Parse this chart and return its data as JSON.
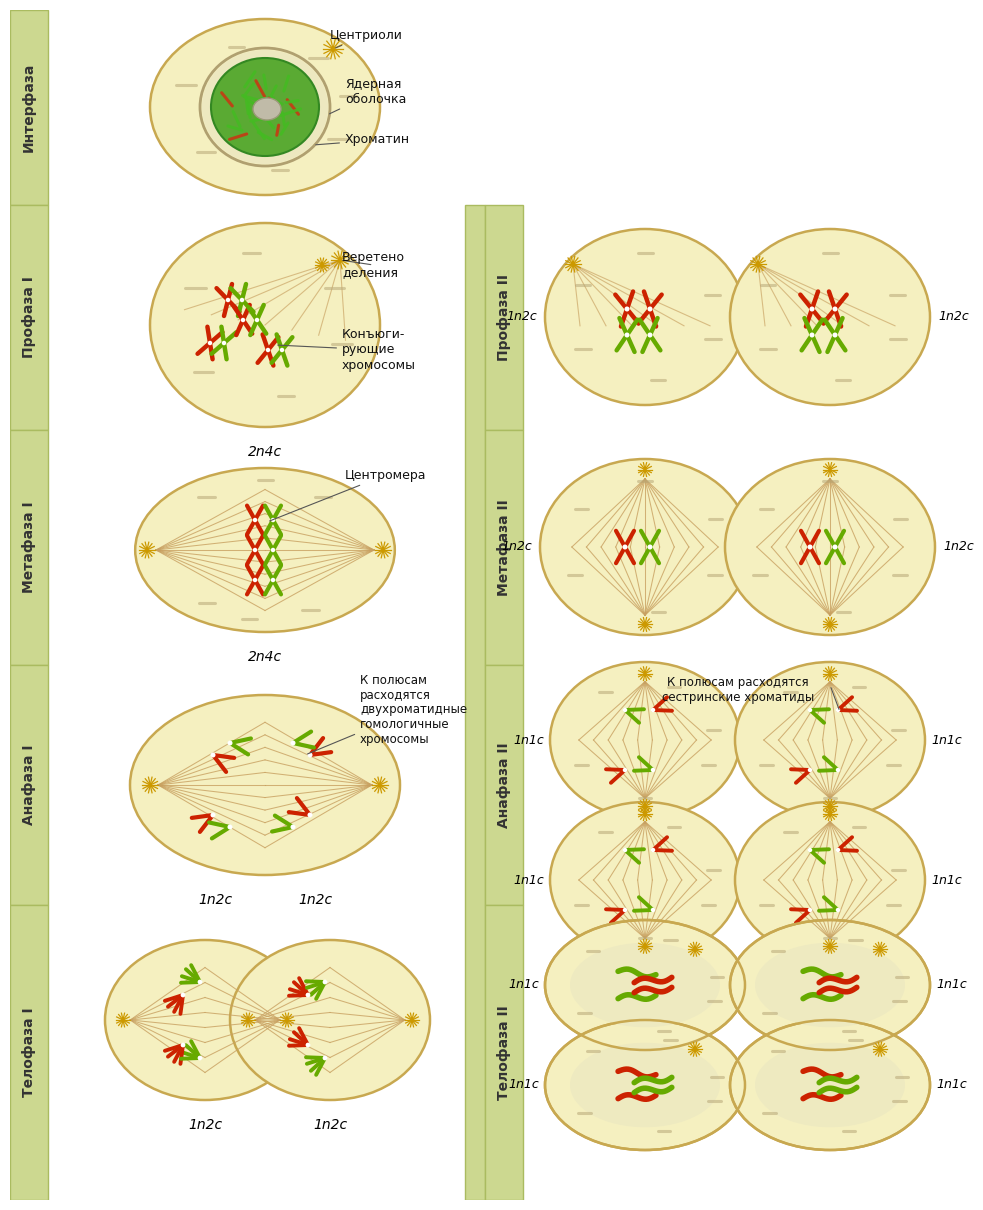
{
  "bg_color": "#ffffff",
  "cell_fill": "#f5f0c0",
  "cell_edge": "#c8a850",
  "strip_color": "#ccd890",
  "strip_edge": "#aabb60",
  "red_chrom": "#cc2200",
  "green_chrom": "#66aa00",
  "spindle_color": "#c8a060",
  "centrosome_color": "#cc9900",
  "ploidy_prophase1": "2n4c",
  "ploidy_metaphase1": "2n4c",
  "ploidy_anaphase1_left": "1n2c",
  "ploidy_anaphase1_right": "1n2c",
  "ploidy_telophase1_left": "1n2c",
  "ploidy_telophase1_right": "1n2c",
  "ploidy_prophase2_left": "1n2c",
  "ploidy_prophase2_right": "1n2c",
  "ploidy_metaphase2_left": "1n2c",
  "ploidy_metaphase2_right": "1n2c",
  "ploidy_anaphase2_tl": "1n1c",
  "ploidy_anaphase2_tr": "1n1c",
  "ploidy_anaphase2_bl": "1n1c",
  "ploidy_anaphase2_br": "1n1c",
  "ploidy_telophase2_tl": "1n1c",
  "ploidy_telophase2_tr": "1n1c",
  "ploidy_telophase2_bl": "1n1c",
  "ploidy_telophase2_br": "1n1c"
}
